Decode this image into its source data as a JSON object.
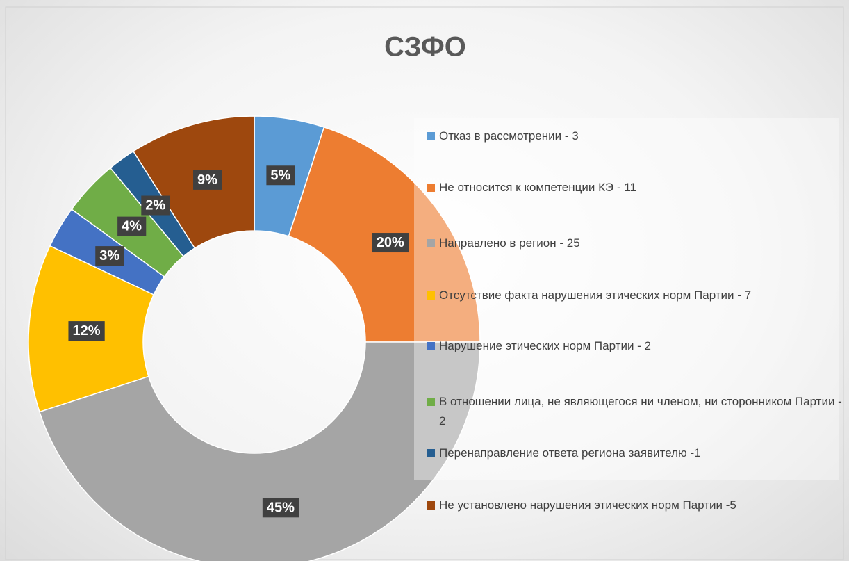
{
  "chart_data": {
    "type": "donut",
    "title": "СЗФО",
    "categories": [
      "Отказ в рассмотрении - 3",
      "Не относится к компетенции КЭ - 11",
      "Направлено в регион - 25",
      "Отсутствие факта нарушения этических норм Партии - 7",
      "Нарушение этических норм Партии - 2",
      "В отношении лица, не являющегося ни членом, ни сторонником Партии - 2",
      "Перенаправление ответа региона заявителю -1",
      "Не установлено нарушения этических норм Партии -5"
    ],
    "values": [
      5,
      20,
      45,
      12,
      3,
      4,
      2,
      9
    ],
    "value_labels": [
      "5%",
      "20%",
      "45%",
      "12%",
      "3%",
      "4%",
      "2%",
      "9%"
    ],
    "colors": [
      "#5b9bd5",
      "#ed7d31",
      "#a5a5a5",
      "#ffc000",
      "#4472c4",
      "#70ad47",
      "#255e91",
      "#9e480e"
    ]
  }
}
